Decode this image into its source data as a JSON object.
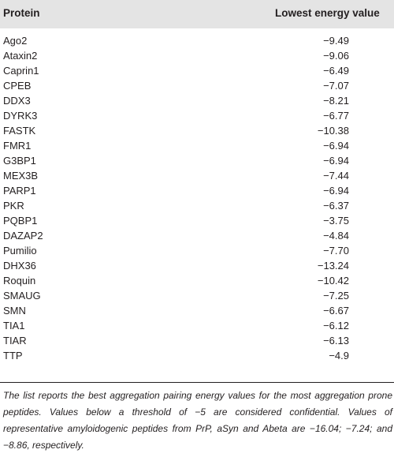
{
  "table": {
    "headers": {
      "protein": "Protein",
      "energy": "Lowest energy value"
    },
    "rows": [
      {
        "protein": "Ago2",
        "value": "−9.49"
      },
      {
        "protein": "Ataxin2",
        "value": "−9.06"
      },
      {
        "protein": "Caprin1",
        "value": "−6.49"
      },
      {
        "protein": "CPEB",
        "value": "−7.07"
      },
      {
        "protein": "DDX3",
        "value": "−8.21"
      },
      {
        "protein": "DYRK3",
        "value": "−6.77"
      },
      {
        "protein": "FASTK",
        "value": "−10.38"
      },
      {
        "protein": "FMR1",
        "value": "−6.94"
      },
      {
        "protein": "G3BP1",
        "value": "−6.94"
      },
      {
        "protein": "MEX3B",
        "value": "−7.44"
      },
      {
        "protein": "PARP1",
        "value": "−6.94"
      },
      {
        "protein": "PKR",
        "value": "−6.37"
      },
      {
        "protein": "PQBP1",
        "value": "−3.75"
      },
      {
        "protein": "DAZAP2",
        "value": "−4.84"
      },
      {
        "protein": "Pumilio",
        "value": "−7.70"
      },
      {
        "protein": "DHX36",
        "value": "−13.24"
      },
      {
        "protein": "Roquin",
        "value": "−10.42"
      },
      {
        "protein": "SMAUG",
        "value": "−7.25"
      },
      {
        "protein": "SMN",
        "value": "−6.67"
      },
      {
        "protein": "TIA1",
        "value": "−6.12"
      },
      {
        "protein": "TIAR",
        "value": "−6.13"
      },
      {
        "protein": "TTP",
        "value": "−4.9"
      }
    ],
    "footnote": "The list reports the best aggregation pairing energy values for the most aggregation prone peptides. Values below a threshold of −5 are considered confidential. Values of representative amyloidogenic peptides from PrP, aSyn and Abeta are −16.04; −7.24; and −8.86, respectively."
  },
  "colors": {
    "header_background": "#e4e4e4",
    "text": "#231f20"
  }
}
